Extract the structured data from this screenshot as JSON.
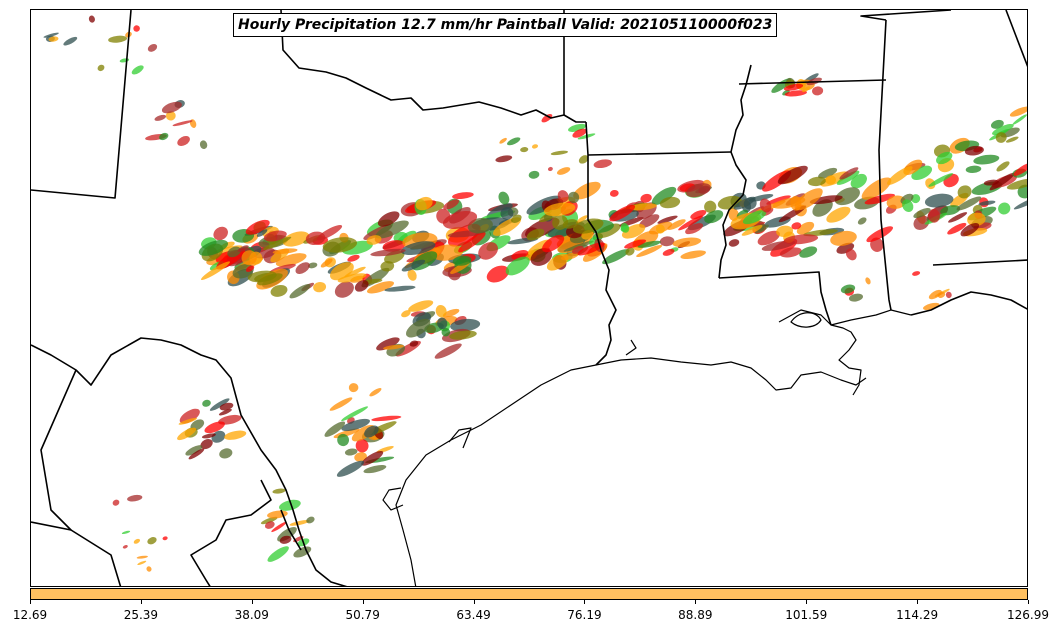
{
  "title": "Hourly Precipitation 12.7 mm/hr Paintball Valid: 202105110000f023",
  "colorbar": {
    "color": "#FFC060",
    "ticks": [
      "12.69",
      "25.39",
      "38.09",
      "50.79",
      "63.49",
      "76.19",
      "88.89",
      "101.59",
      "114.29",
      "126.99"
    ]
  },
  "paint_colors": [
    "#CC2222",
    "#FF0000",
    "#FF8C00",
    "#FFA500",
    "#808000",
    "#228B22",
    "#32CD32",
    "#800000",
    "#A52A2A",
    "#2F4F4F",
    "#556B2F"
  ],
  "colors": {
    "boundary": "#000000",
    "background": "#ffffff"
  }
}
